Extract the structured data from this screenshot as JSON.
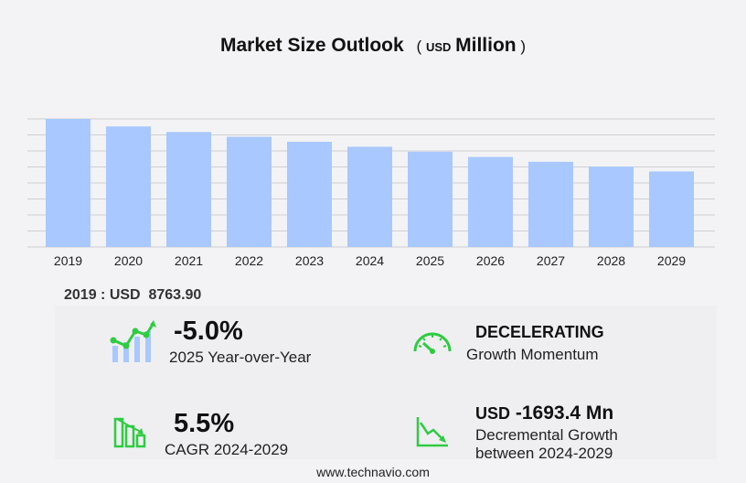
{
  "header": {
    "title": "Market Size Outlook",
    "unit_open": "(",
    "unit_currency": "USD",
    "unit_scale": "Million",
    "unit_close": ")"
  },
  "chart_data": {
    "type": "bar",
    "categories": [
      "2019",
      "2020",
      "2021",
      "2022",
      "2023",
      "2024",
      "2025",
      "2026",
      "2027",
      "2028",
      "2029"
    ],
    "values": [
      8763.9,
      8250,
      7870,
      7540,
      7200,
      6860,
      6520,
      6160,
      5830,
      5500,
      5170
    ],
    "ylim": [
      0,
      8763.9
    ],
    "grid": true,
    "bar_color": "#a8c8ff",
    "grid_color": "#cfcfd4"
  },
  "base": {
    "year": "2019",
    "separator": " : ",
    "currency": "USD",
    "value": "8763.90"
  },
  "kpis": {
    "yoy": {
      "value": "-5.0%",
      "label": "2025 Year-over-Year",
      "icon": "growth-chart-icon"
    },
    "momentum": {
      "value": "DECELERATING",
      "label": "Growth Momentum",
      "icon": "speedometer-icon"
    },
    "cagr": {
      "value": "5.5%",
      "label": "CAGR 2024-2029",
      "icon": "bar-decline-icon"
    },
    "incremental": {
      "currency": "USD",
      "value": "-1693.4 Mn",
      "label_line1": "Decremental Growth",
      "label_line2": "between 2024-2029",
      "icon": "trend-down-icon"
    }
  },
  "colors": {
    "accent_green": "#2ecc40",
    "accent_blue": "#a8c8ff"
  },
  "footer": {
    "url": "www.technavio.com"
  }
}
